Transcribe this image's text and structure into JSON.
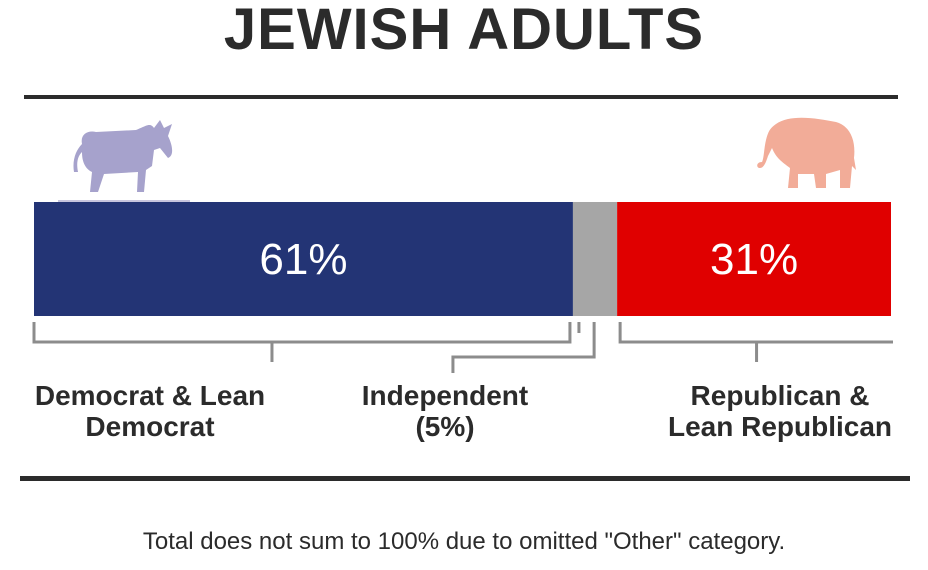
{
  "chart_data": {
    "type": "bar",
    "orientation": "horizontal-stacked",
    "title": "JEWISH ADULTS",
    "categories": [
      "Democrat & Lean Democrat",
      "Independent",
      "Republican & Lean Republican"
    ],
    "series": [
      {
        "values": [
          61,
          5,
          31
        ]
      }
    ],
    "data_labels": [
      "61%",
      "",
      "31%"
    ],
    "category_labels": {
      "dem_line1": "Democrat & Lean",
      "dem_line2": "Democrat",
      "ind_line1": "Independent",
      "ind_line2": "(5%)",
      "rep_line1": "Republican &",
      "rep_line2": "Lean Republican"
    },
    "colors": {
      "democrat": "#233475",
      "independent": "#a6a6a6",
      "republican": "#e00000",
      "donkey": "#a6a2cc",
      "elephant": "#f2ac98",
      "bracket": "#8c8c8c"
    },
    "xlim": [
      0,
      97
    ],
    "grid": false,
    "legend": "none",
    "icons": [
      "donkey-icon",
      "elephant-icon"
    ],
    "footnote": "Total does not sum to 100% due to omitted \"Other\" category."
  }
}
